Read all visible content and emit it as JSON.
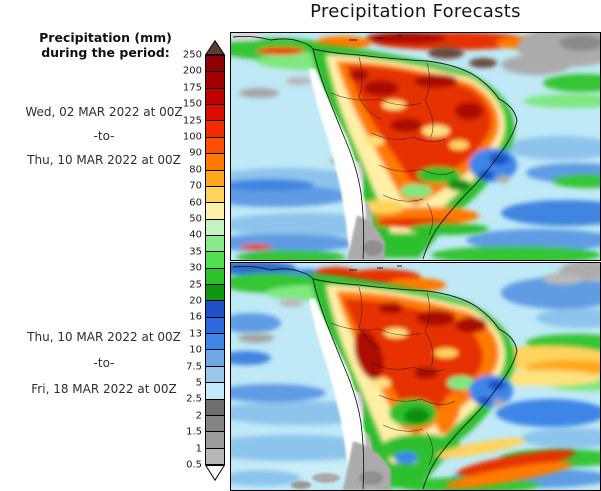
{
  "title": "Precipitation Forecasts",
  "sidebar": {
    "heading_line1": "Precipitation (mm)",
    "heading_line2": "during the period:",
    "period1": {
      "from": "Wed, 02 MAR 2022 at 00Z",
      "separator": "-to-",
      "to": "Thu, 10 MAR 2022 at 00Z"
    },
    "period2": {
      "from": "Thu, 10 MAR 2022 at 00Z",
      "separator": "-to-",
      "to": "Fri, 18 MAR 2022 at 00Z"
    }
  },
  "colorbar": {
    "tick_labels": [
      "250",
      "200",
      "175",
      "150",
      "125",
      "100",
      "90",
      "80",
      "70",
      "60",
      "50",
      "40",
      "35",
      "30",
      "25",
      "20",
      "16",
      "13",
      "10",
      "7.5",
      "5",
      "2.5",
      "2",
      "1.5",
      "1",
      "0.5"
    ],
    "segment_colors_top_to_bottom": [
      "#8C0000",
      "#A30000",
      "#BE0000",
      "#DC0A00",
      "#F42C00",
      "#FF4E00",
      "#FF7A00",
      "#FFA81E",
      "#FFD35C",
      "#FFF0A6",
      "#C6F2C2",
      "#8AE98A",
      "#4FDF4F",
      "#2AC32A",
      "#0F970F",
      "#1E50C8",
      "#2B6ADC",
      "#3E86E8",
      "#6FA8E6",
      "#97C8EC",
      "#C2EAF8",
      "#6E6E6E",
      "#858585",
      "#9B9B9B",
      "#B7B7B7"
    ],
    "over_arrow_color": "#5F3C32",
    "under_arrow_color": "#FFFFFF"
  },
  "chart_data": {
    "type": "heatmap",
    "title": "Precipitation Forecasts",
    "variable": "Precipitation (mm) during the period",
    "region": "South America and adjacent Pacific/Atlantic oceans",
    "legend_position": "vertical colorbar left of map panels",
    "levels_mm": [
      0.5,
      1,
      1.5,
      2,
      2.5,
      5,
      7.5,
      10,
      13,
      16,
      20,
      25,
      30,
      35,
      40,
      50,
      60,
      70,
      80,
      90,
      100,
      125,
      150,
      175,
      200,
      250
    ],
    "under_color": "#FFFFFF",
    "band_colors_low_to_high": [
      "#B7B7B7",
      "#9B9B9B",
      "#858585",
      "#6E6E6E",
      "#C2EAF8",
      "#97C8EC",
      "#6FA8E6",
      "#3E86E8",
      "#2B6ADC",
      "#1E50C8",
      "#0F970F",
      "#2AC32A",
      "#4FDF4F",
      "#8AE98A",
      "#C6F2C2",
      "#FFF0A6",
      "#FFD35C",
      "#FFA81E",
      "#FF7A00",
      "#FF4E00",
      "#F42C00",
      "#DC0A00",
      "#BE0000",
      "#A30000",
      "#8C0000"
    ],
    "over_color": "#5F3C32",
    "panels": [
      {
        "position": "top",
        "period_start": "Wed, 02 MAR 2022 at 00Z",
        "period_end": "Thu, 10 MAR 2022 at 00Z",
        "pattern": "Heavy totals of 100-250+ mm (orange to dark red) over the Amazon basin, northern Brazil and a band along the Venezuela/Guyana coast; blue patch (10-20 mm) over southeast Brazil; orange-red band over northern Argentina/Uruguay; dry white/gray (<2 mm) strip along the Peru-Chile coast, Andes and Patagonia; light blue ocean bands of 2.5-16 mm; gray dry patch over the far northeast Atlantic corner."
      },
      {
        "position": "bottom",
        "period_start": "Thu, 10 MAR 2022 at 00Z",
        "period_end": "Fri, 18 MAR 2022 at 00Z",
        "pattern": "Heavy 100-250 mm rain centered on the western/central Amazon and along the northeast Brazilian coast, with a yellow-orange band (60-100 mm) extending east over the Atlantic; green/blue mix over southeast Brazil with diagonal orange-red streaks offshore to the southeast; dry white/gray Andes, Chilean coast and Patagonia; pale cyan-blue oceans elsewhere."
      }
    ]
  }
}
